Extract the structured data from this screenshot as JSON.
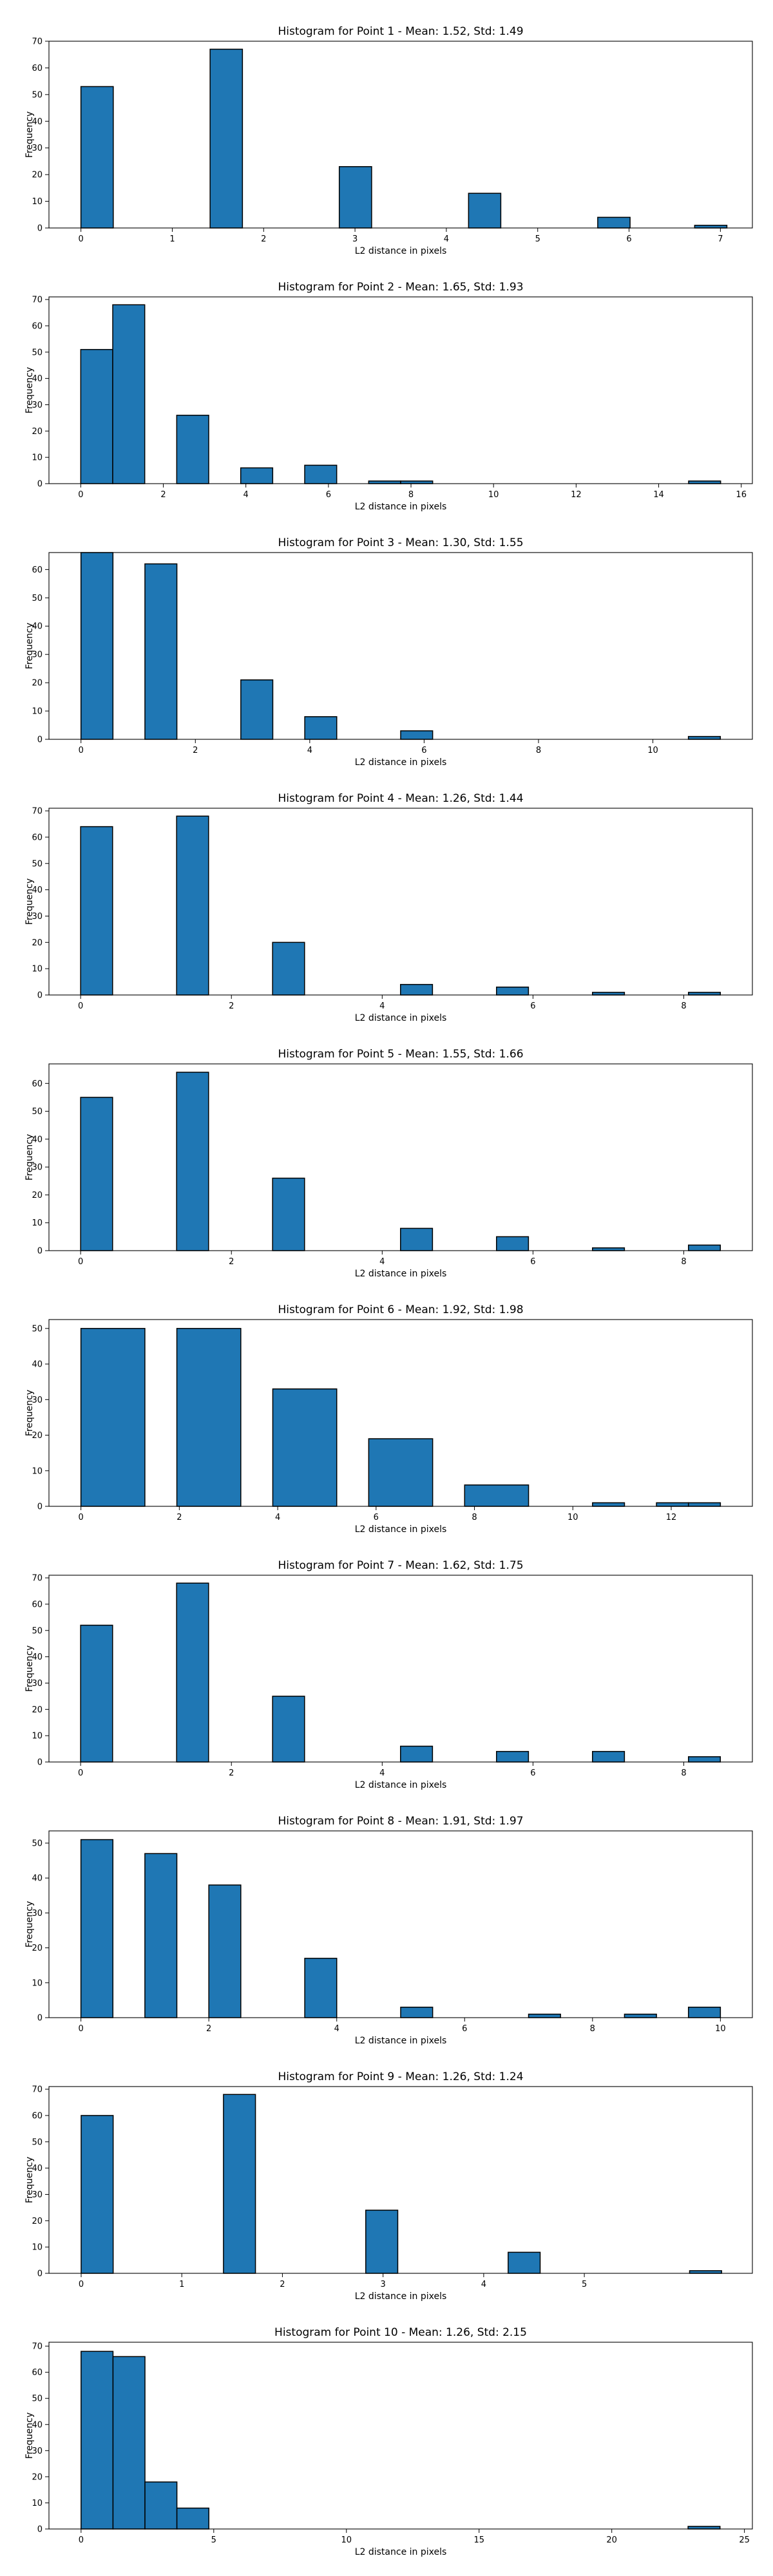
{
  "chart_data": [
    {
      "type": "bar",
      "title": "Histogram for Point 1 - Mean: 1.52, Std: 1.49",
      "xlabel": "L2 distance in pixels",
      "ylabel": "Frequency",
      "xlim": [
        -0.35,
        7.35
      ],
      "ylim": [
        0,
        70
      ],
      "xticks": [
        0,
        1,
        2,
        3,
        4,
        5,
        6,
        7
      ],
      "yticks": [
        0,
        10,
        20,
        30,
        40,
        50,
        60,
        70
      ],
      "bin_range": [
        0,
        7.07
      ],
      "bin_count": 20,
      "bins": [
        {
          "x0": 0.0,
          "x1": 0.354,
          "count": 53
        },
        {
          "x0": 1.414,
          "x1": 1.768,
          "count": 67
        },
        {
          "x0": 2.828,
          "x1": 3.182,
          "count": 23
        },
        {
          "x0": 4.243,
          "x1": 4.596,
          "count": 13
        },
        {
          "x0": 5.657,
          "x1": 6.011,
          "count": 4
        },
        {
          "x0": 6.718,
          "x1": 7.071,
          "count": 1
        }
      ]
    },
    {
      "type": "bar",
      "title": "Histogram for Point 2 - Mean: 1.65, Std: 1.93",
      "xlabel": "L2 distance in pixels",
      "ylabel": "Frequency",
      "xlim": [
        -0.77,
        16.27
      ],
      "ylim": [
        0,
        71
      ],
      "xticks": [
        0,
        2,
        4,
        6,
        8,
        10,
        12,
        14,
        16
      ],
      "yticks": [
        0,
        10,
        20,
        30,
        40,
        50,
        60,
        70
      ],
      "bin_range": [
        0,
        15.5
      ],
      "bin_count": 20,
      "bins": [
        {
          "x0": 0.0,
          "x1": 0.775,
          "count": 51
        },
        {
          "x0": 0.775,
          "x1": 1.55,
          "count": 68
        },
        {
          "x0": 2.325,
          "x1": 3.1,
          "count": 26
        },
        {
          "x0": 3.875,
          "x1": 4.65,
          "count": 6
        },
        {
          "x0": 5.425,
          "x1": 6.2,
          "count": 7
        },
        {
          "x0": 6.975,
          "x1": 7.75,
          "count": 1
        },
        {
          "x0": 7.75,
          "x1": 8.525,
          "count": 1
        },
        {
          "x0": 14.725,
          "x1": 15.5,
          "count": 1
        }
      ]
    },
    {
      "type": "bar",
      "title": "Histogram for Point 3 - Mean: 1.30, Std: 1.55",
      "xlabel": "L2 distance in pixels",
      "ylabel": "Frequency",
      "xlim": [
        -0.56,
        11.74
      ],
      "ylim": [
        0,
        66
      ],
      "xticks": [
        0,
        2,
        4,
        6,
        8,
        10
      ],
      "yticks": [
        0,
        10,
        20,
        30,
        40,
        50,
        60
      ],
      "bin_range": [
        0,
        11.18
      ],
      "bin_count": 20,
      "bins": [
        {
          "x0": 0.0,
          "x1": 0.559,
          "count": 66
        },
        {
          "x0": 1.118,
          "x1": 1.677,
          "count": 62
        },
        {
          "x0": 2.795,
          "x1": 3.354,
          "count": 21
        },
        {
          "x0": 3.913,
          "x1": 4.472,
          "count": 8
        },
        {
          "x0": 5.59,
          "x1": 6.149,
          "count": 3
        },
        {
          "x0": 10.621,
          "x1": 11.18,
          "count": 1
        }
      ]
    },
    {
      "type": "bar",
      "title": "Histogram for Point 4 - Mean: 1.26, Std: 1.44",
      "xlabel": "L2 distance in pixels",
      "ylabel": "Frequency",
      "xlim": [
        -0.42,
        8.91
      ],
      "ylim": [
        0,
        71
      ],
      "xticks": [
        0,
        2,
        4,
        6,
        8
      ],
      "yticks": [
        0,
        10,
        20,
        30,
        40,
        50,
        60,
        70
      ],
      "bin_range": [
        0,
        8.49
      ],
      "bin_count": 20,
      "bins": [
        {
          "x0": 0.0,
          "x1": 0.424,
          "count": 64
        },
        {
          "x0": 1.273,
          "x1": 1.697,
          "count": 68
        },
        {
          "x0": 2.546,
          "x1": 2.97,
          "count": 20
        },
        {
          "x0": 4.243,
          "x1": 4.667,
          "count": 4
        },
        {
          "x0": 5.516,
          "x1": 5.94,
          "count": 3
        },
        {
          "x0": 6.789,
          "x1": 7.213,
          "count": 1
        },
        {
          "x0": 8.062,
          "x1": 8.485,
          "count": 1
        }
      ]
    },
    {
      "type": "bar",
      "title": "Histogram for Point 5 - Mean: 1.55, Std: 1.66",
      "xlabel": "L2 distance in pixels",
      "ylabel": "Frequency",
      "xlim": [
        -0.42,
        8.91
      ],
      "ylim": [
        0,
        67
      ],
      "xticks": [
        0,
        2,
        4,
        6,
        8
      ],
      "yticks": [
        0,
        10,
        20,
        30,
        40,
        50,
        60
      ],
      "bin_range": [
        0,
        8.49
      ],
      "bin_count": 20,
      "bins": [
        {
          "x0": 0.0,
          "x1": 0.424,
          "count": 55
        },
        {
          "x0": 1.273,
          "x1": 1.697,
          "count": 64
        },
        {
          "x0": 2.546,
          "x1": 2.97,
          "count": 26
        },
        {
          "x0": 4.243,
          "x1": 4.667,
          "count": 8
        },
        {
          "x0": 5.516,
          "x1": 5.94,
          "count": 5
        },
        {
          "x0": 6.789,
          "x1": 7.213,
          "count": 1
        },
        {
          "x0": 8.062,
          "x1": 8.485,
          "count": 2
        }
      ]
    },
    {
      "type": "bar",
      "title": "Histogram for Point 6 - Mean: 1.92, Std: 1.98",
      "xlabel": "L2 distance in pixels",
      "ylabel": "Frequency",
      "xlim": [
        -0.65,
        13.65
      ],
      "ylim": [
        0,
        52.5
      ],
      "xticks": [
        0,
        2,
        4,
        6,
        8,
        10,
        12
      ],
      "yticks": [
        0,
        10,
        20,
        30,
        40,
        50
      ],
      "bin_range": [
        0,
        13.0
      ],
      "bin_count": 20,
      "bins": [
        {
          "x0": 0.0,
          "x1": 1.3,
          "count": 50
        },
        {
          "x0": 1.3,
          "x1": 1.95,
          "count": 0
        },
        {
          "x0": 1.95,
          "x1": 3.25,
          "count": 50
        },
        {
          "x0": 3.25,
          "x1": 3.9,
          "count": 0
        },
        {
          "x0": 3.9,
          "x1": 5.2,
          "count": 33
        },
        {
          "x0": 5.2,
          "x1": 5.85,
          "count": 0
        },
        {
          "x0": 5.85,
          "x1": 7.15,
          "count": 19
        },
        {
          "x0": 7.15,
          "x1": 7.8,
          "count": 0
        },
        {
          "x0": 7.8,
          "x1": 9.1,
          "count": 6
        },
        {
          "x0": 10.4,
          "x1": 11.05,
          "count": 1
        },
        {
          "x0": 11.7,
          "x1": 12.35,
          "count": 1
        },
        {
          "x0": 12.35,
          "x1": 13.0,
          "count": 1
        }
      ]
    },
    {
      "type": "bar",
      "title": "Histogram for Point 7 - Mean: 1.62, Std: 1.75",
      "xlabel": "L2 distance in pixels",
      "ylabel": "Frequency",
      "xlim": [
        -0.42,
        8.91
      ],
      "ylim": [
        0,
        71
      ],
      "xticks": [
        0,
        2,
        4,
        6,
        8
      ],
      "yticks": [
        0,
        10,
        20,
        30,
        40,
        50,
        60,
        70
      ],
      "bin_range": [
        0,
        8.49
      ],
      "bin_count": 20,
      "bins": [
        {
          "x0": 0.0,
          "x1": 0.424,
          "count": 52
        },
        {
          "x0": 1.273,
          "x1": 1.697,
          "count": 68
        },
        {
          "x0": 2.546,
          "x1": 2.97,
          "count": 25
        },
        {
          "x0": 4.243,
          "x1": 4.667,
          "count": 6
        },
        {
          "x0": 5.516,
          "x1": 5.94,
          "count": 4
        },
        {
          "x0": 6.789,
          "x1": 7.213,
          "count": 4
        },
        {
          "x0": 8.062,
          "x1": 8.485,
          "count": 2
        }
      ]
    },
    {
      "type": "bar",
      "title": "Histogram for Point 8 - Mean: 1.91, Std: 1.97",
      "xlabel": "L2 distance in pixels",
      "ylabel": "Frequency",
      "xlim": [
        -0.5,
        10.5
      ],
      "ylim": [
        0,
        53.5
      ],
      "xticks": [
        0,
        2,
        4,
        6,
        8,
        10
      ],
      "yticks": [
        0,
        10,
        20,
        30,
        40,
        50
      ],
      "bin_range": [
        0,
        10.0
      ],
      "bin_count": 20,
      "bins": [
        {
          "x0": 0.0,
          "x1": 0.5,
          "count": 51
        },
        {
          "x0": 1.0,
          "x1": 1.5,
          "count": 47
        },
        {
          "x0": 2.0,
          "x1": 2.5,
          "count": 38
        },
        {
          "x0": 3.5,
          "x1": 4.0,
          "count": 17
        },
        {
          "x0": 5.0,
          "x1": 5.5,
          "count": 3
        },
        {
          "x0": 7.0,
          "x1": 7.5,
          "count": 1
        },
        {
          "x0": 8.5,
          "x1": 9.0,
          "count": 1
        },
        {
          "x0": 9.5,
          "x1": 10.0,
          "count": 3
        }
      ]
    },
    {
      "type": "bar",
      "title": "Histogram for Point 9 - Mean: 1.26, Std: 1.24",
      "xlabel": "L2 distance in pixels",
      "ylabel": "Frequency",
      "xlim": [
        -0.32,
        6.67
      ],
      "ylim": [
        0,
        71
      ],
      "xticks": [
        0,
        1,
        2,
        3,
        4,
        5
      ],
      "yticks": [
        0,
        10,
        20,
        30,
        40,
        50,
        60,
        70
      ],
      "bin_range": [
        0,
        6.36
      ],
      "bin_count": 20,
      "bins": [
        {
          "x0": 0.0,
          "x1": 0.318,
          "count": 60
        },
        {
          "x0": 1.414,
          "x1": 1.732,
          "count": 68
        },
        {
          "x0": 2.828,
          "x1": 3.146,
          "count": 24
        },
        {
          "x0": 4.243,
          "x1": 4.561,
          "count": 8
        },
        {
          "x0": 6.046,
          "x1": 6.364,
          "count": 1
        }
      ]
    },
    {
      "type": "bar",
      "title": "Histogram for Point 10 - Mean: 1.26, Std: 2.15",
      "xlabel": "L2 distance in pixels",
      "ylabel": "Frequency",
      "xlim": [
        -1.21,
        25.3
      ],
      "ylim": [
        0,
        71.5
      ],
      "xticks": [
        0,
        5,
        10,
        15,
        20,
        25
      ],
      "yticks": [
        0,
        10,
        20,
        30,
        40,
        50,
        60,
        70
      ],
      "bin_range": [
        0,
        24.08
      ],
      "bin_count": 20,
      "bins": [
        {
          "x0": 0.0,
          "x1": 1.204,
          "count": 68
        },
        {
          "x0": 1.204,
          "x1": 2.408,
          "count": 66
        },
        {
          "x0": 2.408,
          "x1": 3.612,
          "count": 18
        },
        {
          "x0": 3.612,
          "x1": 4.816,
          "count": 8
        },
        {
          "x0": 22.876,
          "x1": 24.08,
          "count": 1
        }
      ]
    }
  ]
}
